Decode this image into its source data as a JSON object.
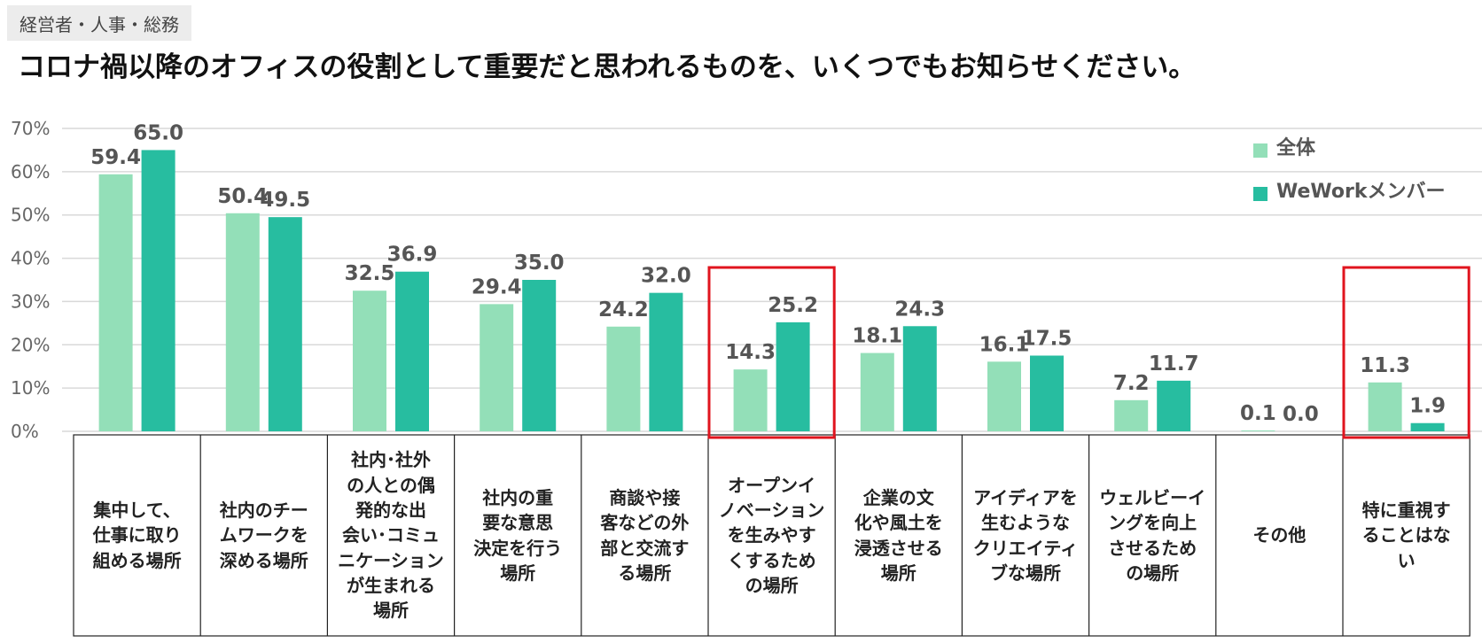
{
  "header": {
    "tag": "経営者・人事・総務",
    "title": "コロナ禍以降のオフィスの役割として重要だと思われるものを、いくつでもお知らせください。"
  },
  "colors": {
    "all": "#93dfb8",
    "wework": "#27bda0",
    "highlight": "#e0141e",
    "grid": "#d9d9d9"
  },
  "chart_data": {
    "type": "bar",
    "title": "コロナ禍以降のオフィスの役割として重要だと思われるものを、いくつでもお知らせください。",
    "ylabel": "",
    "xlabel": "",
    "ylim": [
      0,
      70
    ],
    "yticks": [
      "0%",
      "10%",
      "20%",
      "30%",
      "40%",
      "50%",
      "60%",
      "70%"
    ],
    "categories": [
      "集中して、\n仕事に取り\n組める場所",
      "社内のチー\nムワークを\n深める場所",
      "社内･社外\nの人との偶\n発的な出\n会い･コミュ\nニケーション\nが生まれる\n場所",
      "社内の重\n要な意思\n決定を行う\n場所",
      "商談や接\n客などの外\n部と交流す\nる場所",
      "オープンイ\nノベーション\nを生みやす\nくするため\nの場所",
      "企業の文\n化や風土を\n浸透させる\n場所",
      "アイディアを\n生むような\nクリエイティ\nブな場所",
      "ウェルビーイ\nングを向上\nさせるため\nの場所",
      "その他",
      "特に重視す\nることはな\nい"
    ],
    "series": [
      {
        "name": "全体",
        "values": [
          59.4,
          50.4,
          32.5,
          29.4,
          24.2,
          14.3,
          18.1,
          16.1,
          7.2,
          0.1,
          11.3
        ],
        "labels": [
          "59.4",
          "50.4",
          "32.5",
          "29.4",
          "24.2",
          "14.3",
          "18.1",
          "16.1",
          "7.2",
          "0.1",
          "11.3"
        ]
      },
      {
        "name": "WeWorkメンバー",
        "values": [
          65.0,
          49.5,
          36.9,
          35.0,
          32.0,
          25.2,
          24.3,
          17.5,
          11.7,
          0.0,
          1.9
        ],
        "labels": [
          "65.0",
          "49.5",
          "36.9",
          "35.0",
          "32.0",
          "25.2",
          "24.3",
          "17.5",
          "11.7",
          "0.0",
          "1.9"
        ]
      }
    ],
    "legend": {
      "position": "top-right",
      "entries": [
        "全体",
        "WeWorkメンバー"
      ]
    },
    "highlighted_categories": [
      5,
      10
    ],
    "grid": true
  }
}
